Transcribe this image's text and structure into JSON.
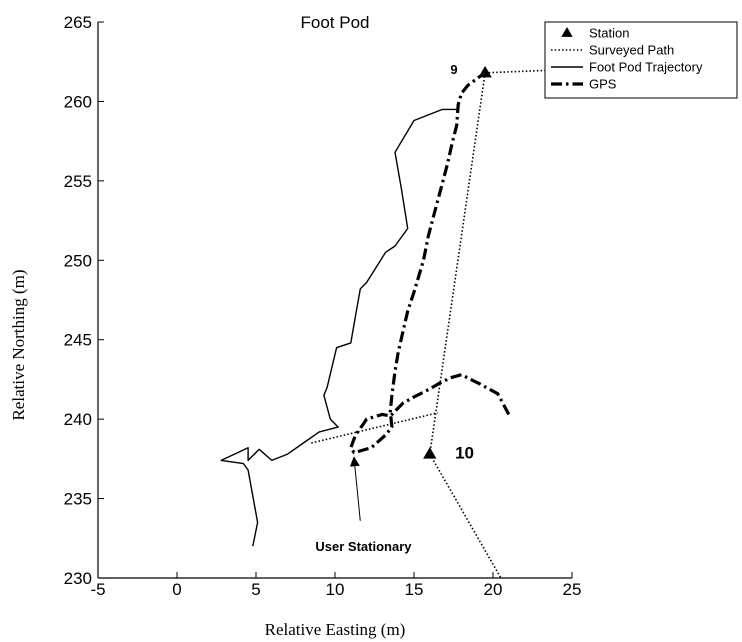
{
  "chart_data": {
    "type": "line",
    "title": "Foot Pod",
    "xlabel": "Relative Easting (m)",
    "ylabel": "Relative Northing (m)",
    "xlim": [
      -5,
      25
    ],
    "ylim": [
      230,
      265
    ],
    "xticks": [
      "-5",
      "0",
      "5",
      "10",
      "15",
      "20",
      "25"
    ],
    "yticks": [
      "230",
      "235",
      "240",
      "245",
      "250",
      "255",
      "260",
      "265"
    ],
    "grid": false,
    "legend_position": "top-right",
    "colors": {
      "all": "#000000"
    },
    "series": [
      {
        "name": "Station",
        "style": "triangle-marker",
        "points": [
          [
            19.5,
            261.8
          ],
          [
            16,
            237.8
          ]
        ]
      },
      {
        "name": "Surveyed Path",
        "style": "dotted",
        "segments": [
          [
            [
              19.5,
              261.8
            ],
            [
              24.5,
              262.0
            ]
          ],
          [
            [
              19.5,
              261.8
            ],
            [
              16,
              237.8
            ]
          ],
          [
            [
              16,
              237.8
            ],
            [
              20.5,
              230
            ]
          ],
          [
            [
              8.5,
              238.5
            ],
            [
              16.5,
              240.4
            ]
          ]
        ]
      },
      {
        "name": "Foot Pod Trajectory",
        "style": "solid",
        "points": [
          [
            4.8,
            232
          ],
          [
            5.1,
            233.5
          ],
          [
            4.5,
            236.8
          ],
          [
            4.2,
            237.2
          ],
          [
            2.8,
            237.4
          ],
          [
            4.5,
            238.2
          ],
          [
            4.5,
            237.4
          ],
          [
            5.2,
            238.1
          ],
          [
            6.0,
            237.4
          ],
          [
            7.0,
            237.8
          ],
          [
            8.0,
            238.5
          ],
          [
            9.0,
            239.2
          ],
          [
            10.2,
            239.5
          ],
          [
            9.7,
            240.0
          ],
          [
            9.3,
            241.5
          ],
          [
            9.5,
            242.0
          ],
          [
            10.1,
            244.5
          ],
          [
            11.0,
            244.8
          ],
          [
            11.3,
            246.5
          ],
          [
            11.6,
            248.2
          ],
          [
            12.0,
            248.6
          ],
          [
            13.2,
            250.5
          ],
          [
            13.8,
            250.9
          ],
          [
            14.6,
            252.0
          ],
          [
            14.2,
            254.5
          ],
          [
            13.8,
            256.8
          ],
          [
            15.0,
            258.8
          ],
          [
            16.8,
            259.5
          ],
          [
            17.8,
            259.5
          ]
        ]
      },
      {
        "name": "GPS",
        "style": "dash-dot",
        "points": [
          [
            21.0,
            240.3
          ],
          [
            20.3,
            241.6
          ],
          [
            19.2,
            242.2
          ],
          [
            18.0,
            242.8
          ],
          [
            17.3,
            242.6
          ],
          [
            16.5,
            242.2
          ],
          [
            16.0,
            241.9
          ],
          [
            15.0,
            241.4
          ],
          [
            14.3,
            241.0
          ],
          [
            13.8,
            240.5
          ],
          [
            13.5,
            240.2
          ],
          [
            13.0,
            240.3
          ],
          [
            12.0,
            240.0
          ],
          [
            11.8,
            239.7
          ],
          [
            11.3,
            239.0
          ],
          [
            11.0,
            238.2
          ],
          [
            11.2,
            237.9
          ],
          [
            11.6,
            238.0
          ],
          [
            12.3,
            238.2
          ],
          [
            13.2,
            239.0
          ],
          [
            13.6,
            239.5
          ],
          [
            13.5,
            240.5
          ],
          [
            13.6,
            241.5
          ],
          [
            13.8,
            243.0
          ],
          [
            14.0,
            244.2
          ],
          [
            14.3,
            245.5
          ],
          [
            14.6,
            246.8
          ],
          [
            15.0,
            248.0
          ],
          [
            15.6,
            250.0
          ],
          [
            15.9,
            251.5
          ],
          [
            16.3,
            253.0
          ],
          [
            16.7,
            254.5
          ],
          [
            17.1,
            256.0
          ],
          [
            17.4,
            257.3
          ],
          [
            17.7,
            258.5
          ],
          [
            17.8,
            259.8
          ],
          [
            18.0,
            260.5
          ],
          [
            18.4,
            261.0
          ],
          [
            19.2,
            261.6
          ]
        ]
      }
    ],
    "annotations": [
      {
        "text": "9",
        "x": 17.3,
        "y": 262.0,
        "size": "small"
      },
      {
        "text": "10",
        "x": 17.6,
        "y": 237.9,
        "size": "large"
      },
      {
        "text": "User Stationary",
        "x": 11.8,
        "y": 232.0,
        "size": "small",
        "arrow_to": [
          11.2,
          237.6
        ],
        "arrow_from": [
          11.6,
          233.6
        ]
      }
    ]
  }
}
